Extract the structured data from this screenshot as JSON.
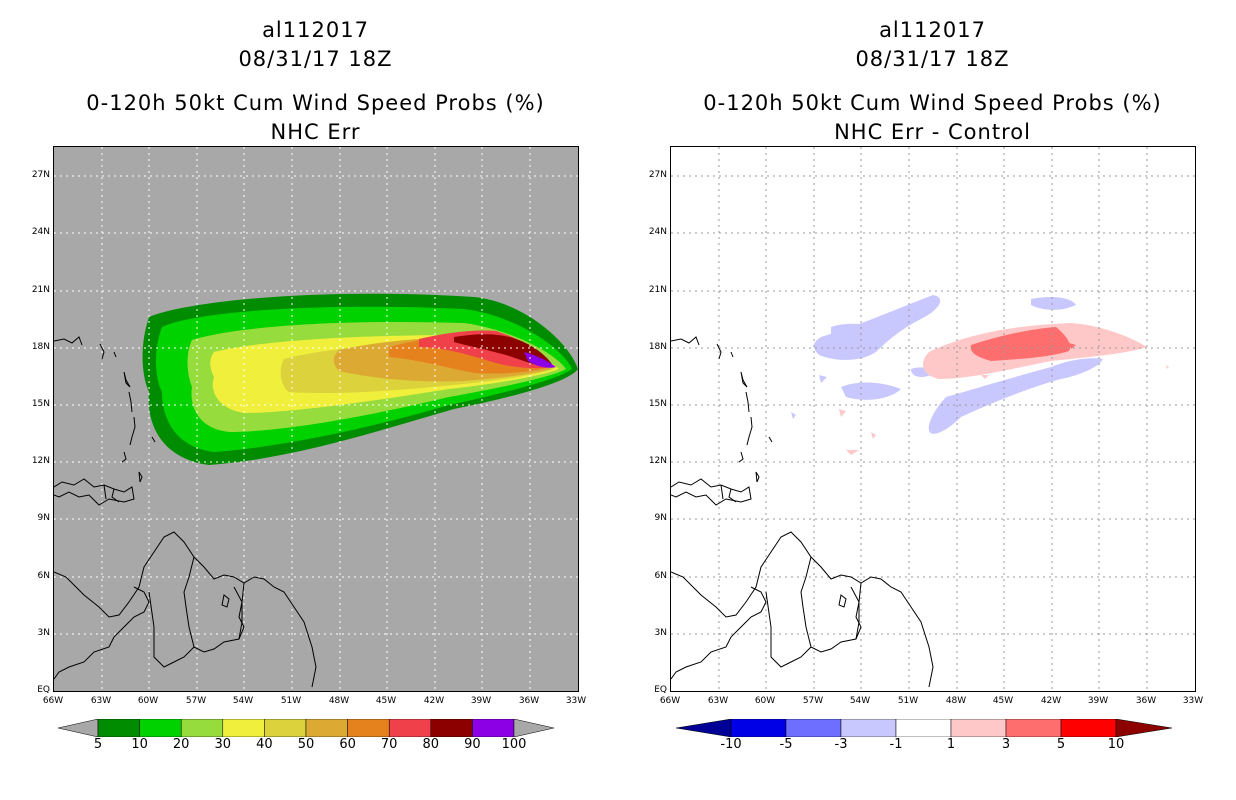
{
  "left_panel": {
    "storm_id": "al112017",
    "datetime": "08/31/17 18Z",
    "product": "0-120h 50kt Cum Wind Speed Probs (%)",
    "subtitle": "NHC Err",
    "background": "#a8a8a8",
    "colorbar": {
      "levels": [
        "5",
        "10",
        "20",
        "30",
        "40",
        "50",
        "60",
        "70",
        "80",
        "90",
        "100"
      ],
      "colors": [
        "#008c00",
        "#00d200",
        "#96dc3c",
        "#f0f03c",
        "#dcd23c",
        "#dcaa32",
        "#e6821e",
        "#f0414b",
        "#8c0000",
        "#8c00e6"
      ],
      "under_color": "#a8a8a8",
      "over_color": "#a8a8a8"
    }
  },
  "right_panel": {
    "storm_id": "al112017",
    "datetime": "08/31/17 18Z",
    "product": "0-120h 50kt Cum Wind Speed Probs (%)",
    "subtitle": "NHC Err - Control",
    "background": "#ffffff",
    "colorbar": {
      "levels": [
        "-10",
        "-5",
        "-3",
        "-1",
        "1",
        "3",
        "5",
        "10"
      ],
      "colors": [
        "#0000e6",
        "#6e6eff",
        "#c8c8ff",
        "#ffffff",
        "#ffc8c8",
        "#ff6e6e",
        "#ff0000"
      ],
      "under_color": "#000096",
      "over_color": "#8c0000"
    }
  },
  "map": {
    "lat_labels": [
      "27N",
      "24N",
      "21N",
      "18N",
      "15N",
      "12N",
      "9N",
      "6N",
      "3N",
      "EQ"
    ],
    "lon_labels": [
      "66W",
      "63W",
      "60W",
      "57W",
      "54W",
      "51W",
      "48W",
      "45W",
      "42W",
      "39W",
      "36W",
      "33W"
    ],
    "lon_range": [
      -66,
      -33
    ],
    "lat_range": [
      0,
      28.5
    ]
  }
}
